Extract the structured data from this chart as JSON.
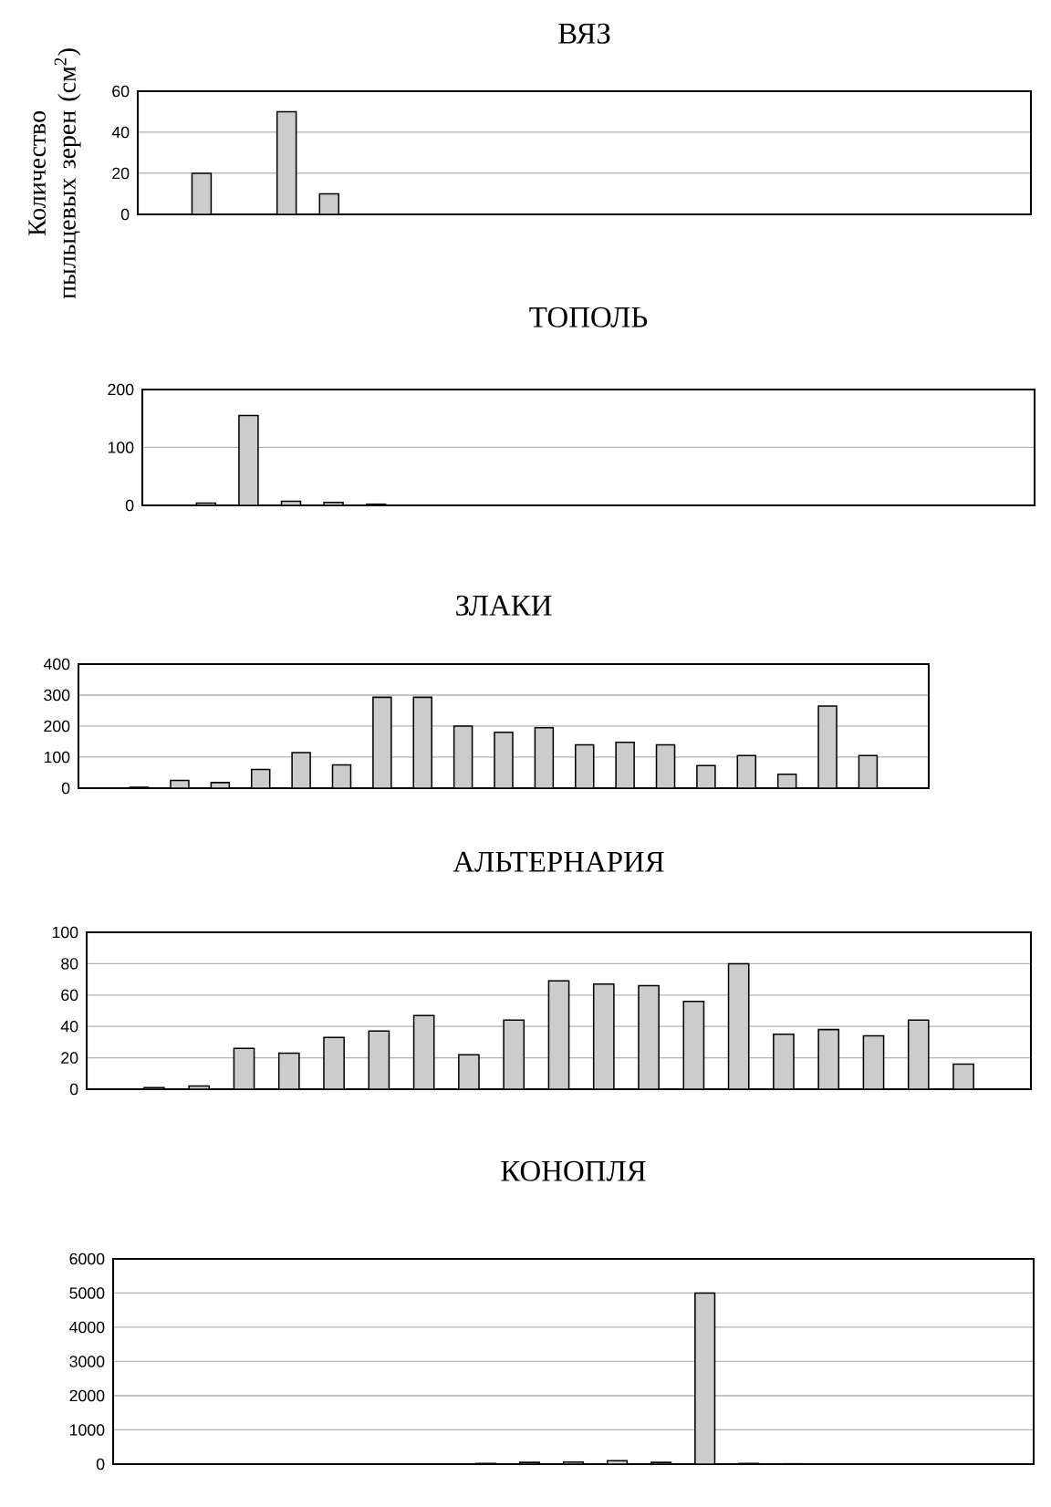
{
  "chart_data": [
    {
      "type": "bar",
      "title": "ВЯЗ",
      "ylabel": "Количество пыльцевых зерен (см$^{2}$)",
      "categories": [
        null,
        null,
        null,
        null,
        null,
        null,
        null,
        null,
        null,
        null,
        null,
        null,
        null,
        null,
        null,
        null,
        null,
        null,
        null,
        null,
        null
      ],
      "values": [
        null,
        20,
        null,
        50,
        10,
        null,
        null,
        null,
        null,
        null,
        null,
        null,
        null,
        null,
        null,
        null,
        null,
        null,
        null,
        null,
        null
      ],
      "color": "#cccccc",
      "ylim": [
        0,
        60
      ],
      "yticks": [
        0,
        20,
        40,
        60
      ],
      "grid": "y",
      "tick_labels": "y"
    },
    {
      "type": "bar",
      "title": "ТОПОЛЬ",
      "categories": [
        null,
        null,
        null,
        null,
        null,
        null,
        null,
        null,
        null,
        null,
        null,
        null,
        null,
        null,
        null,
        null,
        null,
        null,
        null,
        null,
        null
      ],
      "values": [
        null,
        4,
        155,
        7,
        5,
        2,
        null,
        null,
        null,
        null,
        null,
        null,
        null,
        null,
        null,
        null,
        null,
        null,
        null,
        null,
        null
      ],
      "color": "#cccccc",
      "ylim": [
        0,
        200
      ],
      "yticks": [
        0,
        100,
        200
      ],
      "grid": "y",
      "tick_labels": "y"
    },
    {
      "type": "bar",
      "title": "ЗЛАКИ",
      "categories": [
        null,
        null,
        null,
        null,
        null,
        null,
        null,
        null,
        null,
        null,
        null,
        null,
        null,
        null,
        null,
        null,
        null,
        null,
        null,
        null,
        null
      ],
      "values": [
        null,
        3,
        25,
        18,
        60,
        115,
        75,
        293,
        293,
        200,
        180,
        195,
        140,
        148,
        140,
        73,
        105,
        45,
        265,
        105,
        null
      ],
      "color": "#cccccc",
      "ylim": [
        0,
        400
      ],
      "yticks": [
        0,
        100,
        200,
        300,
        400
      ],
      "grid": "y",
      "tick_labels": "y"
    },
    {
      "type": "bar",
      "title": "АЛЬТЕРНАРИЯ",
      "categories": [
        null,
        null,
        null,
        null,
        null,
        null,
        null,
        null,
        null,
        null,
        null,
        null,
        null,
        null,
        null,
        null,
        null,
        null,
        null,
        null,
        null
      ],
      "values": [
        null,
        1,
        2,
        26,
        23,
        33,
        37,
        47,
        22,
        44,
        69,
        67,
        66,
        56,
        80,
        35,
        38,
        34,
        44,
        16,
        null
      ],
      "color": "#cccccc",
      "ylim": [
        0,
        100
      ],
      "yticks": [
        0,
        20,
        40,
        60,
        80,
        100
      ],
      "grid": "y",
      "tick_labels": "y"
    },
    {
      "type": "bar",
      "title": "КОНОПЛЯ",
      "categories": [
        null,
        null,
        null,
        null,
        null,
        null,
        null,
        null,
        null,
        null,
        null,
        null,
        null,
        null,
        null,
        null,
        null,
        null,
        null,
        null,
        null
      ],
      "values": [
        null,
        null,
        null,
        null,
        null,
        null,
        null,
        null,
        20,
        50,
        60,
        100,
        50,
        5000,
        20,
        10,
        5,
        5,
        5,
        5,
        null
      ],
      "color": "#cccccc",
      "ylim": [
        0,
        6000
      ],
      "yticks": [
        0,
        1000,
        2000,
        3000,
        4000,
        5000,
        6000
      ],
      "grid": "y",
      "tick_labels": "y"
    }
  ]
}
